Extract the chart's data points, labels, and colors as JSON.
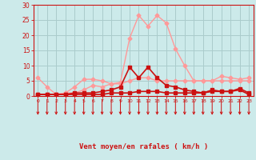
{
  "xlabel": "Vent moyen/en rafales ( km/h )",
  "background_color": "#cceaea",
  "grid_color": "#aacccc",
  "x_ticks": [
    0,
    1,
    2,
    3,
    4,
    5,
    6,
    7,
    8,
    9,
    10,
    11,
    12,
    13,
    14,
    15,
    16,
    17,
    18,
    19,
    20,
    21,
    22,
    23
  ],
  "ylim": [
    0,
    30
  ],
  "yticks": [
    0,
    5,
    10,
    15,
    20,
    25,
    30
  ],
  "series": [
    {
      "name": "rafales_light",
      "color": "#ff9999",
      "linewidth": 1.0,
      "marker": "D",
      "markersize": 2.5,
      "y": [
        6,
        3,
        0.5,
        1,
        3,
        5.5,
        5.5,
        5,
        4,
        4.5,
        19,
        26.5,
        23,
        26.5,
        24,
        15.5,
        10,
        5,
        5,
        5,
        6.5,
        6,
        5.5,
        6
      ]
    },
    {
      "name": "moyen_light",
      "color": "#ff9999",
      "linewidth": 1.0,
      "marker": "D",
      "markersize": 2.5,
      "y": [
        0.5,
        0.5,
        0.5,
        1,
        1,
        2,
        3.5,
        3,
        4,
        4,
        5,
        6,
        6,
        5,
        5,
        5,
        5,
        5,
        5,
        5,
        5,
        5,
        5,
        5
      ]
    },
    {
      "name": "rafales_dark",
      "color": "#cc1111",
      "linewidth": 1.2,
      "marker": "s",
      "markersize": 2.5,
      "y": [
        0.5,
        0.5,
        0.5,
        0.5,
        1,
        1,
        1,
        1.5,
        2,
        3,
        9.5,
        6,
        9.5,
        6,
        3.5,
        3,
        2,
        1.5,
        1,
        2,
        1.5,
        1.5,
        2.5,
        1
      ]
    },
    {
      "name": "moyen_dark",
      "color": "#cc1111",
      "linewidth": 1.2,
      "marker": "s",
      "markersize": 2.5,
      "y": [
        0.5,
        0.5,
        0.5,
        0.5,
        0.5,
        0.5,
        0.5,
        0.5,
        1,
        1,
        1,
        1.5,
        1.5,
        1.5,
        1,
        1,
        1,
        1,
        1,
        1.5,
        1.5,
        1.5,
        2,
        0.5
      ]
    }
  ],
  "arrow_color": "#cc1111",
  "axis_color": "#cc1111",
  "tick_color": "#cc1111",
  "label_color": "#cc1111",
  "red_bar_color": "#cc1111"
}
